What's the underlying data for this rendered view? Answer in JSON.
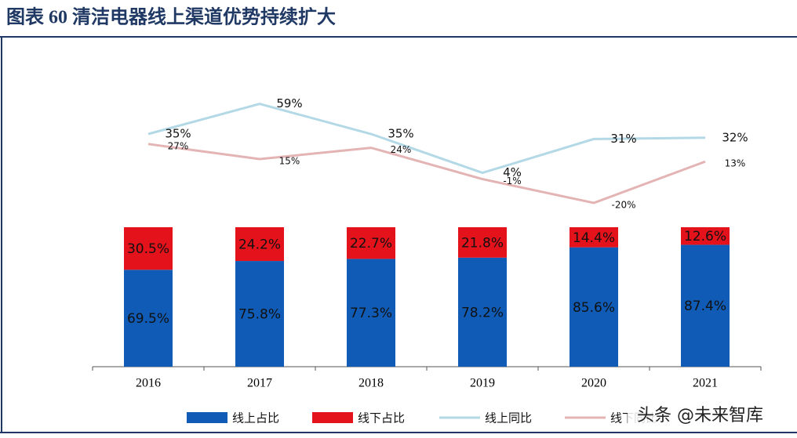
{
  "chart_data": {
    "type": "bar-line",
    "title": "图表  60    清洁电器线上渠道优势持续扩大",
    "categories": [
      "2016",
      "2017",
      "2018",
      "2019",
      "2020",
      "2021"
    ],
    "ylim": [
      0,
      100
    ],
    "y2lim": [
      -40,
      80
    ],
    "series": [
      {
        "name": "线上占比",
        "color": "#0f5bb5",
        "kind": "bar",
        "values": [
          69.5,
          75.8,
          77.3,
          78.2,
          85.6,
          87.4
        ],
        "value_labels": [
          "69.5%",
          "75.8%",
          "77.3%",
          "78.2%",
          "85.6%",
          "87.4%"
        ]
      },
      {
        "name": "线下占比",
        "color": "#e3121b",
        "kind": "bar",
        "values": [
          30.5,
          24.2,
          22.7,
          21.8,
          14.4,
          12.6
        ],
        "value_labels": [
          "30.5%",
          "24.2%",
          "22.7%",
          "21.8%",
          "14.4%",
          "12.6%"
        ]
      },
      {
        "name": "线上同比",
        "color": "#b4d9e6",
        "kind": "line",
        "axis": "y2",
        "values": [
          35,
          59,
          35,
          4,
          31,
          32
        ],
        "value_labels": [
          "35%",
          "59%",
          "35%",
          "4%",
          "31%",
          "32%"
        ]
      },
      {
        "name": "线下同比",
        "color": "#e4b4b4",
        "kind": "line",
        "axis": "y2",
        "values": [
          27,
          15,
          24,
          -1,
          -20,
          13
        ],
        "value_labels": [
          "27%",
          "15%",
          "24%",
          "-1%",
          "-20%",
          "13%"
        ]
      }
    ],
    "watermark": "头条 @未来智库"
  }
}
